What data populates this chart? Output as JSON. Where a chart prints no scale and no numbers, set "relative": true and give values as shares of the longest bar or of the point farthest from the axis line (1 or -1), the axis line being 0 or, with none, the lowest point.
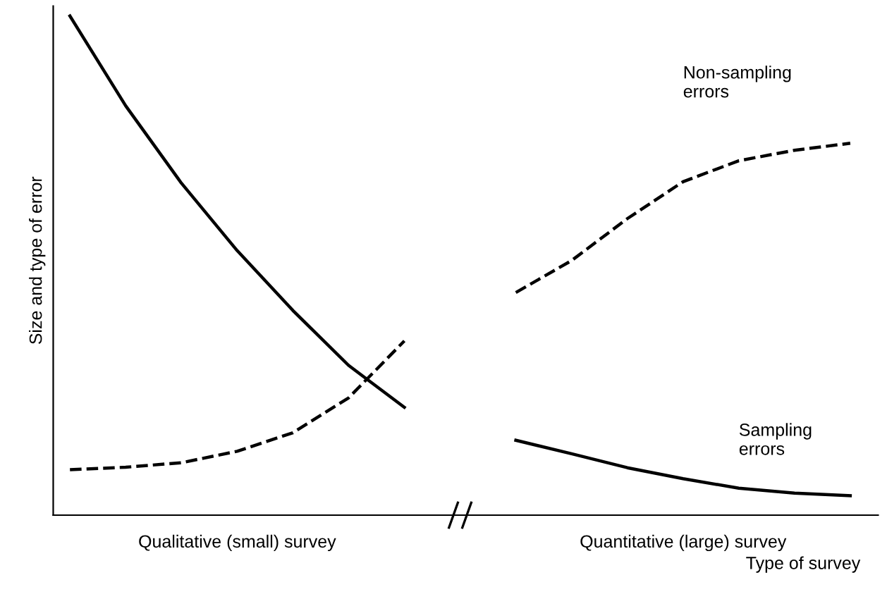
{
  "chart_data": {
    "type": "line",
    "relative": true,
    "xlabel": "Type of survey",
    "ylabel": "Size and type of error",
    "categories": [
      null,
      null,
      null,
      "Qualitative (small) survey",
      null,
      null,
      null,
      null,
      null,
      null,
      null,
      "Quantitative (large) survey",
      null,
      null,
      null
    ],
    "series": [
      {
        "name": "Sampling errors",
        "color": "#000000",
        "line_style": "solid",
        "values": [
          1.0,
          0.82,
          0.665,
          0.53,
          0.41,
          0.3,
          0.216,
          null,
          0.15,
          0.123,
          0.095,
          0.073,
          0.054,
          0.044,
          0.039
        ]
      },
      {
        "name": "Non-sampling errors",
        "color": "#000000",
        "line_style": "dashed",
        "values": [
          0.091,
          0.096,
          0.105,
          0.128,
          0.165,
          0.235,
          0.349,
          null,
          0.446,
          0.51,
          0.594,
          0.668,
          0.71,
          0.731,
          0.745
        ]
      }
    ]
  }
}
